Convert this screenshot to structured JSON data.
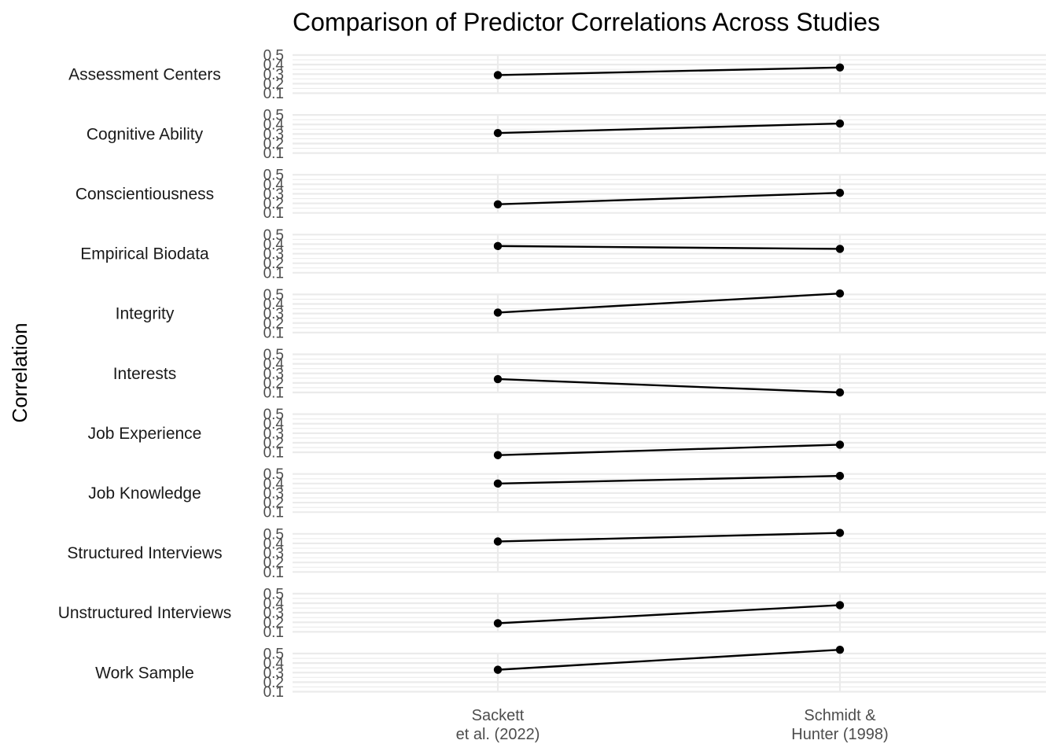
{
  "chart_data": {
    "type": "line",
    "title": "Comparison of Predictor Correlations Across Studies",
    "xlabel": "",
    "ylabel": "Correlation",
    "categories": [
      "Sackett\net al. (2022)",
      "Schmidt &\nHunter (1998)"
    ],
    "y_ticks": [
      0.1,
      0.2,
      0.3,
      0.4,
      0.5
    ],
    "ylim": [
      0.1,
      0.5
    ],
    "grid": true,
    "facets": [
      {
        "name": "Assessment Centers",
        "values": [
          0.29,
          0.37
        ]
      },
      {
        "name": "Cognitive Ability",
        "values": [
          0.31,
          0.41
        ]
      },
      {
        "name": "Conscientiousness",
        "values": [
          0.19,
          0.31
        ]
      },
      {
        "name": "Empirical Biodata",
        "values": [
          0.38,
          0.35
        ]
      },
      {
        "name": "Integrity",
        "values": [
          0.31,
          0.51
        ]
      },
      {
        "name": "Interests",
        "values": [
          0.24,
          0.1
        ]
      },
      {
        "name": "Job Experience",
        "values": [
          0.07,
          0.18
        ]
      },
      {
        "name": "Job Knowledge",
        "values": [
          0.4,
          0.48
        ]
      },
      {
        "name": "Structured Interviews",
        "values": [
          0.42,
          0.51
        ]
      },
      {
        "name": "Unstructured Interviews",
        "values": [
          0.19,
          0.38
        ]
      },
      {
        "name": "Work Sample",
        "values": [
          0.33,
          0.54
        ]
      }
    ]
  }
}
